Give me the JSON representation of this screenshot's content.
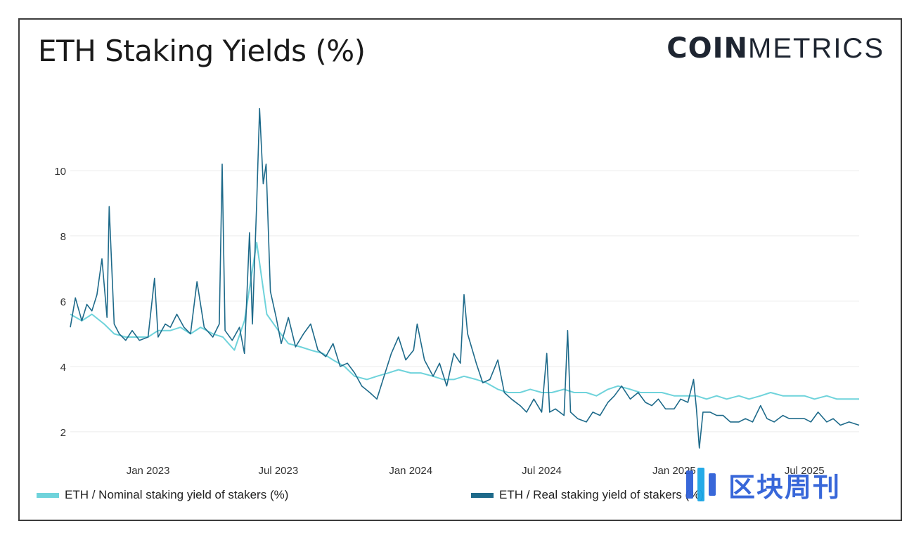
{
  "title": "ETH Staking Yields (%)",
  "logo": {
    "bold": "COIN",
    "light": "METRICS"
  },
  "watermark": {
    "text": "区块周刊",
    "color": "#2e5fd8"
  },
  "colors": {
    "nominal": "#6fd3db",
    "real": "#1e6a8a",
    "grid": "#ececec",
    "axis_text": "#333333"
  },
  "legend": [
    {
      "label": "ETH / Nominal staking yield of stakers (%)",
      "color": "#6fd3db"
    },
    {
      "label": "ETH / Real staking yield of stakers (%)",
      "color": "#1e6a8a"
    }
  ],
  "chart_data": {
    "type": "line",
    "title": "ETH Staking Yields (%)",
    "xlabel": "",
    "ylabel": "",
    "xlim": [
      "2022-09-15",
      "2025-09-15"
    ],
    "ylim": [
      1.2,
      12
    ],
    "y_ticks": [
      2,
      4,
      6,
      8,
      10
    ],
    "x_ticks": [
      {
        "date": "2023-01-01",
        "label": "Jan 2023"
      },
      {
        "date": "2023-07-01",
        "label": "Jul 2023"
      },
      {
        "date": "2024-01-01",
        "label": "Jan 2024"
      },
      {
        "date": "2024-07-01",
        "label": "Jul 2024"
      },
      {
        "date": "2025-01-01",
        "label": "Jan 2025"
      },
      {
        "date": "2025-07-01",
        "label": "Jul 2025"
      }
    ],
    "grid": true,
    "legend_position": "bottom",
    "series": [
      {
        "name": "ETH / Nominal staking yield of stakers (%)",
        "color": "#6fd3db",
        "points": [
          [
            "2022-09-15",
            5.6
          ],
          [
            "2022-10-01",
            5.4
          ],
          [
            "2022-10-15",
            5.6
          ],
          [
            "2022-11-01",
            5.3
          ],
          [
            "2022-11-15",
            5.0
          ],
          [
            "2022-12-01",
            4.9
          ],
          [
            "2022-12-15",
            4.9
          ],
          [
            "2023-01-01",
            4.9
          ],
          [
            "2023-01-15",
            5.1
          ],
          [
            "2023-02-01",
            5.1
          ],
          [
            "2023-02-15",
            5.2
          ],
          [
            "2023-03-01",
            5.0
          ],
          [
            "2023-03-15",
            5.2
          ],
          [
            "2023-04-01",
            5.0
          ],
          [
            "2023-04-15",
            4.9
          ],
          [
            "2023-05-01",
            4.5
          ],
          [
            "2023-05-15",
            5.4
          ],
          [
            "2023-06-01",
            7.8
          ],
          [
            "2023-06-15",
            5.6
          ],
          [
            "2023-07-01",
            5.1
          ],
          [
            "2023-07-15",
            4.7
          ],
          [
            "2023-08-01",
            4.6
          ],
          [
            "2023-08-15",
            4.5
          ],
          [
            "2023-09-01",
            4.4
          ],
          [
            "2023-09-15",
            4.2
          ],
          [
            "2023-10-01",
            4.0
          ],
          [
            "2023-10-15",
            3.7
          ],
          [
            "2023-11-01",
            3.6
          ],
          [
            "2023-11-15",
            3.7
          ],
          [
            "2023-12-01",
            3.8
          ],
          [
            "2023-12-15",
            3.9
          ],
          [
            "2024-01-01",
            3.8
          ],
          [
            "2024-01-15",
            3.8
          ],
          [
            "2024-02-01",
            3.7
          ],
          [
            "2024-02-15",
            3.6
          ],
          [
            "2024-03-01",
            3.6
          ],
          [
            "2024-03-15",
            3.7
          ],
          [
            "2024-04-01",
            3.6
          ],
          [
            "2024-04-15",
            3.5
          ],
          [
            "2024-05-01",
            3.3
          ],
          [
            "2024-05-15",
            3.2
          ],
          [
            "2024-06-01",
            3.2
          ],
          [
            "2024-06-15",
            3.3
          ],
          [
            "2024-07-01",
            3.2
          ],
          [
            "2024-07-15",
            3.2
          ],
          [
            "2024-08-01",
            3.3
          ],
          [
            "2024-08-15",
            3.2
          ],
          [
            "2024-09-01",
            3.2
          ],
          [
            "2024-09-15",
            3.1
          ],
          [
            "2024-10-01",
            3.3
          ],
          [
            "2024-10-15",
            3.4
          ],
          [
            "2024-11-01",
            3.3
          ],
          [
            "2024-11-15",
            3.2
          ],
          [
            "2024-12-01",
            3.2
          ],
          [
            "2024-12-15",
            3.2
          ],
          [
            "2025-01-01",
            3.1
          ],
          [
            "2025-01-15",
            3.1
          ],
          [
            "2025-02-01",
            3.1
          ],
          [
            "2025-02-15",
            3.0
          ],
          [
            "2025-03-01",
            3.1
          ],
          [
            "2025-03-15",
            3.0
          ],
          [
            "2025-04-01",
            3.1
          ],
          [
            "2025-04-15",
            3.0
          ],
          [
            "2025-05-01",
            3.1
          ],
          [
            "2025-05-15",
            3.2
          ],
          [
            "2025-06-01",
            3.1
          ],
          [
            "2025-06-15",
            3.1
          ],
          [
            "2025-07-01",
            3.1
          ],
          [
            "2025-07-15",
            3.0
          ],
          [
            "2025-08-01",
            3.1
          ],
          [
            "2025-08-15",
            3.0
          ],
          [
            "2025-09-01",
            3.0
          ],
          [
            "2025-09-15",
            3.0
          ]
        ]
      },
      {
        "name": "ETH / Real staking yield of stakers (%)",
        "color": "#1e6a8a",
        "points": [
          [
            "2022-09-15",
            5.2
          ],
          [
            "2022-09-22",
            6.1
          ],
          [
            "2022-10-01",
            5.4
          ],
          [
            "2022-10-08",
            5.9
          ],
          [
            "2022-10-15",
            5.7
          ],
          [
            "2022-10-22",
            6.2
          ],
          [
            "2022-10-29",
            7.3
          ],
          [
            "2022-11-05",
            5.5
          ],
          [
            "2022-11-08",
            8.9
          ],
          [
            "2022-11-15",
            5.3
          ],
          [
            "2022-11-22",
            5.0
          ],
          [
            "2022-12-01",
            4.8
          ],
          [
            "2022-12-10",
            5.1
          ],
          [
            "2022-12-20",
            4.8
          ],
          [
            "2023-01-01",
            4.9
          ],
          [
            "2023-01-10",
            6.7
          ],
          [
            "2023-01-15",
            4.9
          ],
          [
            "2023-01-25",
            5.3
          ],
          [
            "2023-02-01",
            5.2
          ],
          [
            "2023-02-10",
            5.6
          ],
          [
            "2023-02-20",
            5.2
          ],
          [
            "2023-03-01",
            5.0
          ],
          [
            "2023-03-10",
            6.6
          ],
          [
            "2023-03-20",
            5.2
          ],
          [
            "2023-04-01",
            4.9
          ],
          [
            "2023-04-10",
            5.3
          ],
          [
            "2023-04-14",
            10.2
          ],
          [
            "2023-04-18",
            5.1
          ],
          [
            "2023-04-28",
            4.8
          ],
          [
            "2023-05-08",
            5.2
          ],
          [
            "2023-05-15",
            4.4
          ],
          [
            "2023-05-22",
            8.1
          ],
          [
            "2023-05-26",
            5.3
          ],
          [
            "2023-06-01",
            9.0
          ],
          [
            "2023-06-05",
            11.9
          ],
          [
            "2023-06-10",
            9.6
          ],
          [
            "2023-06-14",
            10.2
          ],
          [
            "2023-06-20",
            6.3
          ],
          [
            "2023-06-28",
            5.5
          ],
          [
            "2023-07-05",
            4.7
          ],
          [
            "2023-07-15",
            5.5
          ],
          [
            "2023-07-25",
            4.6
          ],
          [
            "2023-08-05",
            5.0
          ],
          [
            "2023-08-15",
            5.3
          ],
          [
            "2023-08-25",
            4.5
          ],
          [
            "2023-09-05",
            4.3
          ],
          [
            "2023-09-15",
            4.7
          ],
          [
            "2023-09-25",
            4.0
          ],
          [
            "2023-10-05",
            4.1
          ],
          [
            "2023-10-15",
            3.8
          ],
          [
            "2023-10-25",
            3.4
          ],
          [
            "2023-11-05",
            3.2
          ],
          [
            "2023-11-15",
            3.0
          ],
          [
            "2023-11-25",
            3.7
          ],
          [
            "2023-12-05",
            4.4
          ],
          [
            "2023-12-15",
            4.9
          ],
          [
            "2023-12-25",
            4.2
          ],
          [
            "2024-01-05",
            4.5
          ],
          [
            "2024-01-10",
            5.3
          ],
          [
            "2024-01-20",
            4.2
          ],
          [
            "2024-02-01",
            3.7
          ],
          [
            "2024-02-10",
            4.1
          ],
          [
            "2024-02-20",
            3.4
          ],
          [
            "2024-03-01",
            4.4
          ],
          [
            "2024-03-10",
            4.1
          ],
          [
            "2024-03-15",
            6.2
          ],
          [
            "2024-03-20",
            5.0
          ],
          [
            "2024-04-01",
            4.1
          ],
          [
            "2024-04-10",
            3.5
          ],
          [
            "2024-04-20",
            3.6
          ],
          [
            "2024-05-01",
            4.2
          ],
          [
            "2024-05-10",
            3.2
          ],
          [
            "2024-05-20",
            3.0
          ],
          [
            "2024-06-01",
            2.8
          ],
          [
            "2024-06-10",
            2.6
          ],
          [
            "2024-06-20",
            3.0
          ],
          [
            "2024-07-01",
            2.6
          ],
          [
            "2024-07-08",
            4.4
          ],
          [
            "2024-07-12",
            2.6
          ],
          [
            "2024-07-20",
            2.7
          ],
          [
            "2024-08-01",
            2.5
          ],
          [
            "2024-08-06",
            5.1
          ],
          [
            "2024-08-10",
            2.6
          ],
          [
            "2024-08-20",
            2.4
          ],
          [
            "2024-09-01",
            2.3
          ],
          [
            "2024-09-10",
            2.6
          ],
          [
            "2024-09-20",
            2.5
          ],
          [
            "2024-10-01",
            2.9
          ],
          [
            "2024-10-10",
            3.1
          ],
          [
            "2024-10-20",
            3.4
          ],
          [
            "2024-11-01",
            3.0
          ],
          [
            "2024-11-12",
            3.2
          ],
          [
            "2024-11-22",
            2.9
          ],
          [
            "2024-12-01",
            2.8
          ],
          [
            "2024-12-10",
            3.0
          ],
          [
            "2024-12-20",
            2.7
          ],
          [
            "2025-01-01",
            2.7
          ],
          [
            "2025-01-10",
            3.0
          ],
          [
            "2025-01-20",
            2.9
          ],
          [
            "2025-01-28",
            3.6
          ],
          [
            "2025-02-01",
            2.7
          ],
          [
            "2025-02-05",
            1.5
          ],
          [
            "2025-02-10",
            2.6
          ],
          [
            "2025-02-20",
            2.6
          ],
          [
            "2025-03-01",
            2.5
          ],
          [
            "2025-03-10",
            2.5
          ],
          [
            "2025-03-20",
            2.3
          ],
          [
            "2025-04-01",
            2.3
          ],
          [
            "2025-04-10",
            2.4
          ],
          [
            "2025-04-20",
            2.3
          ],
          [
            "2025-05-01",
            2.8
          ],
          [
            "2025-05-10",
            2.4
          ],
          [
            "2025-05-20",
            2.3
          ],
          [
            "2025-06-01",
            2.5
          ],
          [
            "2025-06-10",
            2.4
          ],
          [
            "2025-06-20",
            2.4
          ],
          [
            "2025-07-01",
            2.4
          ],
          [
            "2025-07-10",
            2.3
          ],
          [
            "2025-07-20",
            2.6
          ],
          [
            "2025-08-01",
            2.3
          ],
          [
            "2025-08-10",
            2.4
          ],
          [
            "2025-08-20",
            2.2
          ],
          [
            "2025-09-01",
            2.3
          ],
          [
            "2025-09-15",
            2.2
          ]
        ]
      }
    ]
  }
}
